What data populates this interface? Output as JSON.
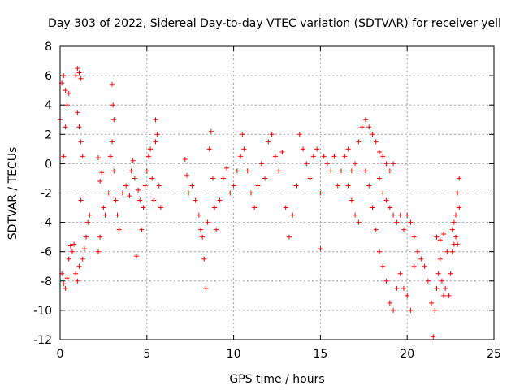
{
  "chart_data": {
    "type": "scatter",
    "title": "Day 303 of 2022, Sidereal Day-to-day VTEC variation (SDTVAR) for receiver yell",
    "xlabel": "GPS time / hours",
    "ylabel": "SDTVAR / TECUs",
    "xlim": [
      0,
      25
    ],
    "ylim": [
      -12,
      8
    ],
    "xticks": [
      0,
      5,
      10,
      15,
      20,
      25
    ],
    "yticks": [
      -12,
      -10,
      -8,
      -6,
      -4,
      -2,
      0,
      2,
      4,
      6,
      8
    ],
    "grid": true,
    "marker": "+",
    "marker_color": "#ff0000",
    "legend": "none",
    "series": [
      {
        "name": "SDTVAR",
        "points": [
          [
            0.0,
            3.0
          ],
          [
            0.1,
            5.5
          ],
          [
            0.2,
            6.0
          ],
          [
            0.3,
            5.0
          ],
          [
            0.4,
            4.0
          ],
          [
            0.5,
            4.8
          ],
          [
            0.3,
            2.5
          ],
          [
            0.2,
            0.5
          ],
          [
            0.1,
            -7.5
          ],
          [
            0.2,
            -8.2
          ],
          [
            0.3,
            -8.5
          ],
          [
            0.4,
            -7.8
          ],
          [
            0.5,
            -6.5
          ],
          [
            0.6,
            -5.6
          ],
          [
            0.7,
            -6.0
          ],
          [
            0.8,
            -5.5
          ],
          [
            0.9,
            6.0
          ],
          [
            1.0,
            6.5
          ],
          [
            1.1,
            6.2
          ],
          [
            1.2,
            5.8
          ],
          [
            1.0,
            3.5
          ],
          [
            1.1,
            2.5
          ],
          [
            1.2,
            1.5
          ],
          [
            1.3,
            0.5
          ],
          [
            0.9,
            -7.5
          ],
          [
            1.0,
            -8.0
          ],
          [
            1.1,
            -7.0
          ],
          [
            1.3,
            -6.5
          ],
          [
            1.4,
            -5.8
          ],
          [
            1.5,
            -5.0
          ],
          [
            1.6,
            -4.0
          ],
          [
            1.7,
            -3.5
          ],
          [
            1.2,
            -2.5
          ],
          [
            2.2,
            0.4
          ],
          [
            2.4,
            -0.6
          ],
          [
            2.3,
            -1.2
          ],
          [
            2.5,
            -3.0
          ],
          [
            2.3,
            -5.0
          ],
          [
            2.2,
            -6.0
          ],
          [
            2.6,
            -3.5
          ],
          [
            2.8,
            -2.0
          ],
          [
            2.9,
            0.5
          ],
          [
            3.0,
            1.5
          ],
          [
            3.1,
            -0.5
          ],
          [
            3.2,
            -2.5
          ],
          [
            3.0,
            5.4
          ],
          [
            3.05,
            4.0
          ],
          [
            3.1,
            3.0
          ],
          [
            3.3,
            -3.5
          ],
          [
            3.4,
            -4.5
          ],
          [
            3.6,
            -2.0
          ],
          [
            3.8,
            -1.5
          ],
          [
            4.0,
            -2.2
          ],
          [
            4.1,
            -0.5
          ],
          [
            4.2,
            0.2
          ],
          [
            4.3,
            -1.0
          ],
          [
            4.4,
            -6.3
          ],
          [
            4.5,
            -1.8
          ],
          [
            4.6,
            -2.5
          ],
          [
            4.7,
            -4.5
          ],
          [
            4.8,
            -3.0
          ],
          [
            4.9,
            -1.5
          ],
          [
            5.0,
            -0.5
          ],
          [
            5.1,
            0.5
          ],
          [
            5.2,
            1.0
          ],
          [
            5.3,
            -1.0
          ],
          [
            5.4,
            -2.5
          ],
          [
            5.5,
            1.5
          ],
          [
            5.5,
            3.0
          ],
          [
            5.6,
            2.0
          ],
          [
            5.7,
            -1.5
          ],
          [
            5.8,
            -3.0
          ],
          [
            7.2,
            0.3
          ],
          [
            7.3,
            -0.8
          ],
          [
            7.4,
            -2.0
          ],
          [
            7.6,
            -1.5
          ],
          [
            7.8,
            -2.5
          ],
          [
            8.0,
            -3.5
          ],
          [
            8.1,
            -4.5
          ],
          [
            8.2,
            -5.0
          ],
          [
            8.3,
            -6.5
          ],
          [
            8.4,
            -8.5
          ],
          [
            8.5,
            -4.0
          ],
          [
            8.6,
            1.0
          ],
          [
            8.7,
            2.2
          ],
          [
            8.8,
            -1.0
          ],
          [
            8.9,
            -3.0
          ],
          [
            9.0,
            -4.5
          ],
          [
            9.2,
            -2.5
          ],
          [
            9.4,
            -1.0
          ],
          [
            9.6,
            -0.3
          ],
          [
            9.8,
            -2.0
          ],
          [
            10.0,
            -1.5
          ],
          [
            10.2,
            -0.5
          ],
          [
            10.4,
            0.5
          ],
          [
            10.5,
            2.0
          ],
          [
            10.6,
            1.0
          ],
          [
            10.8,
            -0.5
          ],
          [
            11.0,
            -2.0
          ],
          [
            11.2,
            -3.0
          ],
          [
            11.4,
            -1.5
          ],
          [
            11.6,
            0.0
          ],
          [
            11.8,
            -1.0
          ],
          [
            12.0,
            1.5
          ],
          [
            12.2,
            2.0
          ],
          [
            12.4,
            0.5
          ],
          [
            12.6,
            -0.5
          ],
          [
            12.8,
            0.8
          ],
          [
            13.0,
            -3.0
          ],
          [
            13.2,
            -5.0
          ],
          [
            13.4,
            -3.5
          ],
          [
            13.6,
            -1.5
          ],
          [
            13.8,
            2.0
          ],
          [
            14.0,
            1.0
          ],
          [
            14.2,
            0.0
          ],
          [
            14.4,
            -1.0
          ],
          [
            14.6,
            0.5
          ],
          [
            14.8,
            1.0
          ],
          [
            15.0,
            -2.0
          ],
          [
            15.0,
            -5.8
          ],
          [
            15.2,
            0.5
          ],
          [
            15.4,
            0.0
          ],
          [
            15.6,
            -0.5
          ],
          [
            15.8,
            0.5
          ],
          [
            16.0,
            -1.5
          ],
          [
            16.2,
            -0.5
          ],
          [
            16.4,
            0.5
          ],
          [
            16.6,
            1.0
          ],
          [
            16.8,
            -0.5
          ],
          [
            17.0,
            0.0
          ],
          [
            17.2,
            1.5
          ],
          [
            17.4,
            2.5
          ],
          [
            17.6,
            3.0
          ],
          [
            17.8,
            2.5
          ],
          [
            18.0,
            2.0
          ],
          [
            18.2,
            1.5
          ],
          [
            18.4,
            0.8
          ],
          [
            18.6,
            0.5
          ],
          [
            18.8,
            0.0
          ],
          [
            19.0,
            -0.5
          ],
          [
            19.2,
            0.0
          ],
          [
            16.6,
            -1.5
          ],
          [
            16.8,
            -2.5
          ],
          [
            17.0,
            -3.5
          ],
          [
            17.2,
            -4.0
          ],
          [
            17.6,
            -0.5
          ],
          [
            17.8,
            -1.5
          ],
          [
            18.0,
            -3.0
          ],
          [
            18.2,
            -4.5
          ],
          [
            18.4,
            -6.0
          ],
          [
            18.6,
            -7.0
          ],
          [
            18.8,
            -8.0
          ],
          [
            19.0,
            -9.5
          ],
          [
            19.2,
            -10.0
          ],
          [
            19.4,
            -8.5
          ],
          [
            19.6,
            -7.5
          ],
          [
            19.8,
            -8.5
          ],
          [
            20.0,
            -9.0
          ],
          [
            20.2,
            -10.0
          ],
          [
            20.4,
            -7.0
          ],
          [
            18.4,
            -1.0
          ],
          [
            18.6,
            -2.0
          ],
          [
            18.8,
            -2.5
          ],
          [
            19.0,
            -3.0
          ],
          [
            19.2,
            -3.5
          ],
          [
            19.4,
            -4.0
          ],
          [
            19.6,
            -3.5
          ],
          [
            19.8,
            -4.5
          ],
          [
            20.0,
            -3.5
          ],
          [
            20.2,
            -4.0
          ],
          [
            20.4,
            -5.0
          ],
          [
            20.6,
            -6.0
          ],
          [
            20.8,
            -6.5
          ],
          [
            21.0,
            -7.0
          ],
          [
            21.2,
            -8.0
          ],
          [
            21.4,
            -9.5
          ],
          [
            21.5,
            -11.8
          ],
          [
            21.6,
            -10.0
          ],
          [
            21.7,
            -8.5
          ],
          [
            21.8,
            -7.5
          ],
          [
            21.9,
            -6.5
          ],
          [
            22.0,
            -8.0
          ],
          [
            22.1,
            -9.0
          ],
          [
            22.2,
            -8.5
          ],
          [
            21.7,
            -5.0
          ],
          [
            21.9,
            -5.2
          ],
          [
            22.1,
            -4.8
          ],
          [
            22.3,
            -6.0
          ],
          [
            22.4,
            -9.0
          ],
          [
            22.5,
            -7.5
          ],
          [
            22.6,
            -6.0
          ],
          [
            22.7,
            -4.0
          ],
          [
            22.8,
            -5.0
          ],
          [
            22.9,
            -5.5
          ],
          [
            23.0,
            -3.0
          ],
          [
            23.0,
            -1.0
          ],
          [
            22.9,
            -2.0
          ],
          [
            22.8,
            -3.5
          ],
          [
            22.7,
            -5.5
          ],
          [
            22.6,
            -4.5
          ]
        ]
      }
    ]
  }
}
